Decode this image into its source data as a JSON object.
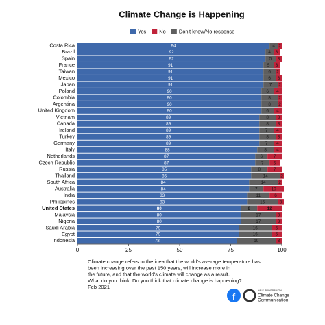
{
  "chart_data": {
    "type": "stacked-bar-horizontal",
    "title": "Climate Change is Happening",
    "categories": [
      "Costa Rica",
      "Brazil",
      "Spain",
      "France",
      "Taiwan",
      "Mexico",
      "Japan",
      "Poland",
      "Colombia",
      "Argentina",
      "United Kingdom",
      "Vietnam",
      "Canada",
      "Ireland",
      "Turkey",
      "Germany",
      "Italy",
      "Netherlands",
      "Czech Republic",
      "Russia",
      "Thailand",
      "South Africa",
      "Australia",
      "India",
      "Philippines",
      "United States",
      "Malaysia",
      "Nigeria",
      "Saudi Arabia",
      "Egypt",
      "Indonesia"
    ],
    "highlight_category": 25,
    "series": [
      {
        "name": "Yes",
        "color": "#3f69ab",
        "values": [
          94,
          92,
          92,
          91,
          91,
          91,
          91,
          90,
          90,
          90,
          90,
          89,
          89,
          89,
          89,
          89,
          88,
          87,
          87,
          85,
          85,
          84,
          84,
          83,
          83,
          80,
          80,
          80,
          79,
          79,
          78
        ]
      },
      {
        "name": "No",
        "color": "#c0233a",
        "values": [
          2,
          3,
          3,
          3,
          2,
          3,
          2,
          4,
          2,
          2,
          4,
          3,
          3,
          4,
          3,
          4,
          4,
          7,
          5,
          7,
          2,
          2,
          10,
          6,
          3,
          12,
          3,
          3,
          5,
          5,
          3
        ]
      },
      {
        "name": "Don't know/No response",
        "color": "#5f5f5f",
        "values": [
          4,
          4,
          5,
          5,
          6,
          6,
          7,
          6,
          8,
          8,
          6,
          8,
          8,
          7,
          8,
          7,
          8,
          6,
          7,
          8,
          14,
          14,
          7,
          11,
          15,
          8,
          17,
          17,
          16,
          16,
          19
        ]
      }
    ],
    "xlim": [
      0,
      100
    ],
    "xticks": [
      0,
      25,
      50,
      75,
      100
    ],
    "footnote": [
      "Climate change refers to the idea that the world's average temperature has",
      "been increasing over the past 150 years, will increase more in",
      "the future, and that the world's climate will change as a result.",
      "What do you think: Do you think that climate change is happening?",
      "Feb 2021"
    ],
    "logo_text": [
      "YALE PROGRAM ON",
      "Climate Change",
      "Communication"
    ]
  }
}
